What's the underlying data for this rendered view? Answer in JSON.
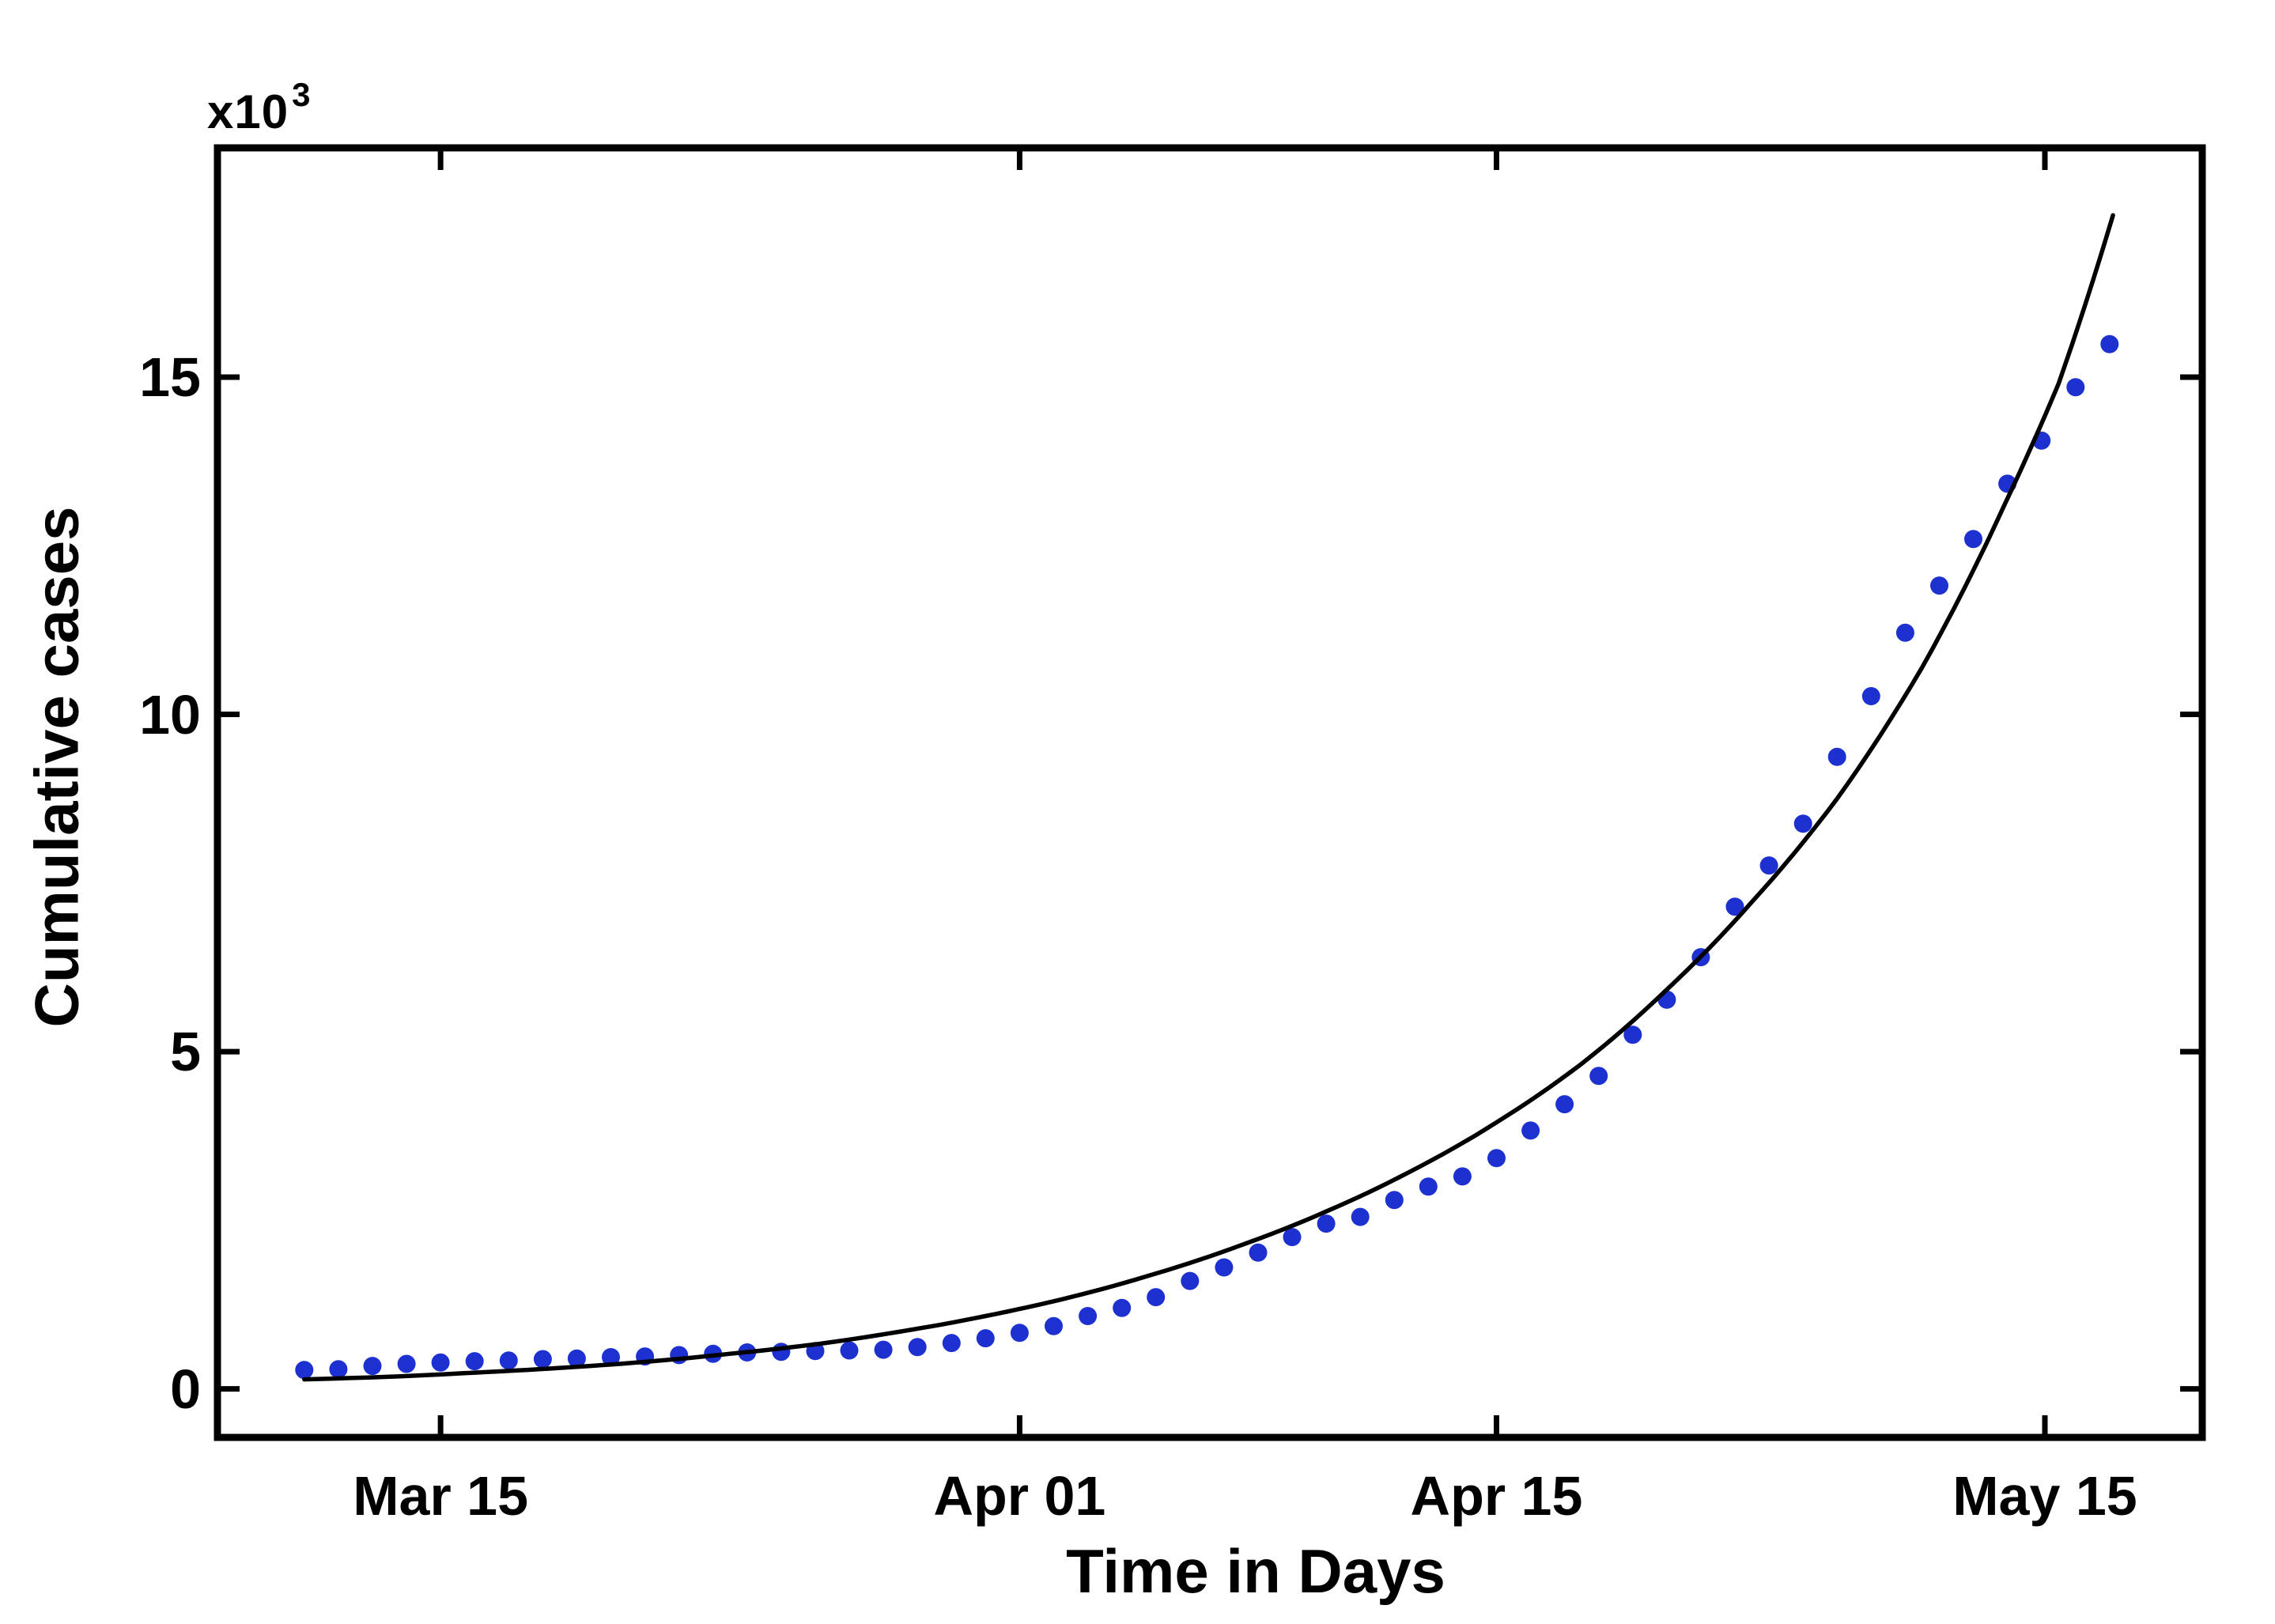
{
  "chart": {
    "xlabel": "Time in Days",
    "ylabel": "Cumulative cases",
    "y_multiplier_base": "x10",
    "y_multiplier_exp": "3"
  },
  "chart_data": {
    "type": "scatter",
    "title": "",
    "xlabel": "Time in Days",
    "ylabel": "Cumulative cases",
    "y_unit_multiplier_label": "x10^3",
    "grid": false,
    "legend": "none",
    "x_axis": {
      "tick_labels": [
        "Mar 15",
        "Apr 01",
        "Apr 15",
        "May 15"
      ],
      "tick_days": [
        4,
        21,
        35,
        51.1
      ],
      "xlim_days": [
        -2.55,
        55.72
      ]
    },
    "y_axis": {
      "tick_labels": [
        "0",
        "5",
        "10",
        "15"
      ],
      "tick_values_thousands": [
        0,
        5,
        10,
        15
      ],
      "ylim_thousands": [
        -0.72,
        18.4
      ],
      "units": "cases x 1000"
    },
    "series": [
      {
        "name": "observed-cumulative-cases",
        "type": "scatter",
        "marker": "filled-circle",
        "color": "#1d31d1",
        "day_start": 0,
        "day_step": 1,
        "values_thousands": [
          0.28,
          0.29,
          0.34,
          0.37,
          0.39,
          0.41,
          0.42,
          0.44,
          0.45,
          0.47,
          0.48,
          0.5,
          0.52,
          0.54,
          0.55,
          0.56,
          0.57,
          0.58,
          0.62,
          0.68,
          0.75,
          0.83,
          0.93,
          1.08,
          1.2,
          1.36,
          1.6,
          1.8,
          2.02,
          2.25,
          2.45,
          2.55,
          2.8,
          3.0,
          3.15,
          3.42,
          3.83,
          4.22,
          4.64,
          5.25,
          5.77,
          6.4,
          7.15,
          7.76,
          8.38,
          9.37,
          10.27,
          11.21,
          11.91,
          12.6,
          13.42,
          14.06,
          14.85,
          15.49
        ]
      },
      {
        "name": "model-fit-curve",
        "type": "line",
        "color": "#000000",
        "points_day_value_thousands": [
          [
            0,
            0.14
          ],
          [
            2.5,
            0.18
          ],
          [
            5,
            0.24
          ],
          [
            7.5,
            0.31
          ],
          [
            10,
            0.4
          ],
          [
            12.5,
            0.52
          ],
          [
            15,
            0.66
          ],
          [
            17.5,
            0.85
          ],
          [
            20,
            1.08
          ],
          [
            22.5,
            1.36
          ],
          [
            25,
            1.71
          ],
          [
            27.5,
            2.13
          ],
          [
            30,
            2.63
          ],
          [
            32.5,
            3.23
          ],
          [
            35,
            3.95
          ],
          [
            37.5,
            4.82
          ],
          [
            40,
            5.92
          ],
          [
            42.5,
            7.22
          ],
          [
            45,
            8.75
          ],
          [
            47.5,
            10.7
          ],
          [
            50,
            13.2
          ],
          [
            51.5,
            14.9
          ],
          [
            53.1,
            17.4
          ]
        ]
      }
    ]
  }
}
